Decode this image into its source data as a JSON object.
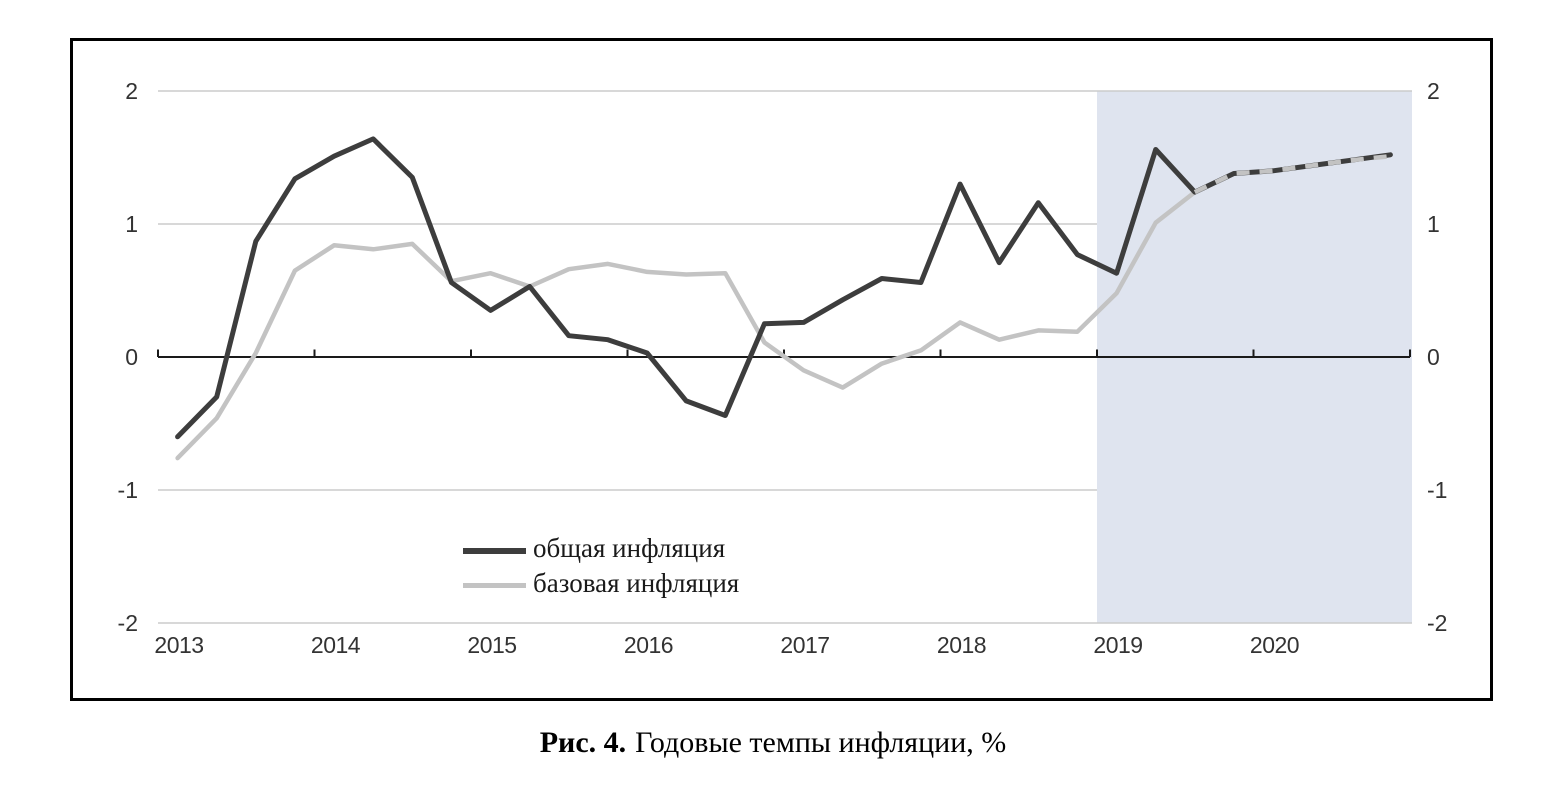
{
  "figure": {
    "caption_label": "Рис. 4.",
    "caption_text": "Годовые темпы инфляции, %"
  },
  "colors": {
    "background": "#ffffff",
    "frame_border": "#000000",
    "grid": "#cbcbcb",
    "axis": "#1a1a1a",
    "headline_line": "#3d3d3d",
    "core_line": "#c3c3c3",
    "forecast_shading": "#dfe4ef",
    "tick_label": "#333333"
  },
  "chart_data": {
    "type": "line",
    "title": "",
    "xlabel": "",
    "ylabel": "",
    "ylim": [
      -2,
      2
    ],
    "grid": "horizontal",
    "legend_position": "inside-bottom-left",
    "x_year_labels": [
      "2013",
      "2014",
      "2015",
      "2016",
      "2017",
      "2018",
      "2019",
      "2020"
    ],
    "y_ticks": [
      {
        "value": 2,
        "label": "2"
      },
      {
        "value": 1,
        "label": "1"
      },
      {
        "value": 0,
        "label": "0"
      },
      {
        "value": -1,
        "label": "-1"
      },
      {
        "value": -2,
        "label": "-2"
      }
    ],
    "y_axis_sides": [
      "left",
      "right"
    ],
    "x": [
      "2013Q1",
      "2013Q2",
      "2013Q3",
      "2013Q4",
      "2014Q1",
      "2014Q2",
      "2014Q3",
      "2014Q4",
      "2015Q1",
      "2015Q2",
      "2015Q3",
      "2015Q4",
      "2016Q1",
      "2016Q2",
      "2016Q3",
      "2016Q4",
      "2017Q1",
      "2017Q2",
      "2017Q3",
      "2017Q4",
      "2018Q1",
      "2018Q2",
      "2018Q3",
      "2018Q4",
      "2019Q1",
      "2019Q2",
      "2019Q3",
      "2019Q4",
      "2020Q1",
      "2020Q2",
      "2020Q3",
      "2020Q4"
    ],
    "series": [
      {
        "name": "общая инфляция",
        "color": "#3d3d3d",
        "width": 5,
        "values": [
          -0.6,
          -0.3,
          0.87,
          1.34,
          1.51,
          1.64,
          1.35,
          0.56,
          0.35,
          0.53,
          0.16,
          0.13,
          0.03,
          -0.33,
          -0.44,
          0.25,
          0.26,
          0.43,
          0.59,
          0.56,
          1.3,
          0.71,
          1.16,
          0.77,
          0.63,
          1.56,
          1.24,
          1.38,
          1.4,
          1.44,
          1.48,
          1.52
        ]
      },
      {
        "name": "базовая инфляция",
        "color": "#c3c3c3",
        "width": 4.5,
        "values": [
          -0.76,
          -0.46,
          0.03,
          0.65,
          0.84,
          0.81,
          0.85,
          0.57,
          0.63,
          0.53,
          0.66,
          0.7,
          0.64,
          0.62,
          0.63,
          0.11,
          -0.1,
          -0.23,
          -0.05,
          0.05,
          0.26,
          0.13,
          0.2,
          0.19,
          0.48,
          1.01,
          1.24,
          1.38,
          1.4,
          1.44,
          1.48,
          1.51
        ]
      }
    ],
    "forecast": {
      "from": "2019Q1",
      "shading_color": "#dfe4ef",
      "overlap_dash_from_index": 26
    }
  }
}
